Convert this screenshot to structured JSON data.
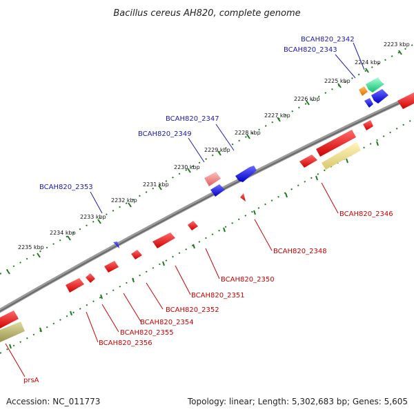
{
  "title": "Bacillus cereus AH820, complete genome",
  "footer": {
    "accession": "Accession: NC_011773",
    "summary": "Topology: linear; Length: 5,302,683 bp; Genes: 5,605"
  },
  "kbp_labels": [
    "2223 kbp",
    "2224 kbp",
    "2225 kbp",
    "2226 kbp",
    "2227 kbp",
    "2228 kbp",
    "2229 kbp",
    "2230 kbp",
    "2231 kbp",
    "2232 kbp",
    "2233 kbp",
    "2234 kbp",
    "2235 kbp"
  ],
  "genes_top": [
    "BCAH820_2342",
    "BCAH820_2343",
    "BCAH820_2347",
    "BCAH820_2349",
    "BCAH820_2353"
  ],
  "genes_bottom": [
    "BCAH820_2346",
    "BCAH820_2348",
    "BCAH820_2350",
    "BCAH820_2351",
    "BCAH820_2352",
    "BCAH820_2354",
    "BCAH820_2355",
    "BCAH820_2356",
    "prsA"
  ],
  "colors": {
    "backbone": "#7a7a7a",
    "tick_green": "#1f7a1f",
    "forward_gene": "#1010e0",
    "reverse_gene": "#ee0000",
    "label_blue": "#1a1ab0",
    "label_red": "#cc0000"
  }
}
